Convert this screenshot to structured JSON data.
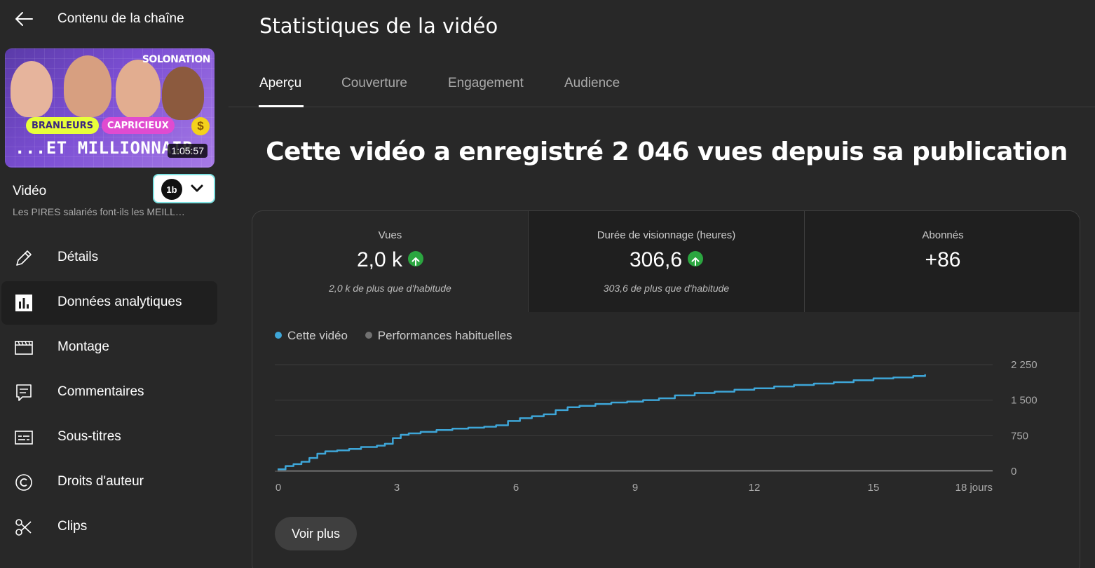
{
  "sidebar": {
    "back_title": "Contenu de la chaîne",
    "thumbnail": {
      "brand": "SOLONATION",
      "pill_a": "BRANLEURS",
      "pill_b": "CAPRICIEUX",
      "headline": "...ET MILLIONNAIR",
      "duration": "1:05:57"
    },
    "video_label": "Vidéo",
    "video_title": "Les PIRES salariés font-ils les MEILL…",
    "ext_logo": "1b",
    "nav": [
      {
        "label": "Détails",
        "icon": "pencil-icon"
      },
      {
        "label": "Données analytiques",
        "icon": "analytics-icon"
      },
      {
        "label": "Montage",
        "icon": "clapperboard-icon"
      },
      {
        "label": "Commentaires",
        "icon": "comment-icon"
      },
      {
        "label": "Sous-titres",
        "icon": "subtitles-icon"
      },
      {
        "label": "Droits d'auteur",
        "icon": "copyright-icon"
      },
      {
        "label": "Clips",
        "icon": "scissors-icon"
      }
    ]
  },
  "main": {
    "title": "Statistiques de la vidéo",
    "tabs": [
      {
        "label": "Aperçu"
      },
      {
        "label": "Couverture"
      },
      {
        "label": "Engagement"
      },
      {
        "label": "Audience"
      }
    ],
    "headline": "Cette vidéo a enregistré 2 046 vues depuis sa publication",
    "metrics": [
      {
        "label": "Vues",
        "value": "2,0 k",
        "sub": "2,0 k de plus que d'habitude"
      },
      {
        "label": "Durée de visionnage (heures)",
        "value": "306,6",
        "sub": "303,6 de plus que d'habitude"
      },
      {
        "label": "Abonnés",
        "value": "+86",
        "sub": ""
      }
    ],
    "more_button": "Voir plus"
  },
  "colors": {
    "series_main": "#3ea6d8",
    "series_typical": "#717171",
    "up_green": "#2ba640"
  },
  "chart_data": {
    "type": "line",
    "x_tick_labels": [
      "0",
      "3",
      "6",
      "9",
      "12",
      "15",
      "18 jours"
    ],
    "y_tick_labels": [
      "2 250",
      "1 500",
      "750",
      "0"
    ],
    "ylim": [
      0,
      2250
    ],
    "xlim": [
      0,
      18
    ],
    "grid": true,
    "legend_position": "top-left",
    "series": [
      {
        "name": "Cette vidéo",
        "x": [
          0,
          0.2,
          0.4,
          0.6,
          0.8,
          1.0,
          1.2,
          1.5,
          1.8,
          2.1,
          2.5,
          2.7,
          2.9,
          3.1,
          3.3,
          3.6,
          4.0,
          4.4,
          4.8,
          5.2,
          5.5,
          5.8,
          6.1,
          6.4,
          6.7,
          7.0,
          7.3,
          7.6,
          8.0,
          8.4,
          8.8,
          9.2,
          9.6,
          10.0,
          10.5,
          11.0,
          11.5,
          12.0,
          12.5,
          13.0,
          13.5,
          14.0,
          14.5,
          15.0,
          15.5,
          16.0,
          16.3
        ],
        "values": [
          40,
          110,
          150,
          200,
          280,
          370,
          420,
          440,
          470,
          510,
          540,
          580,
          700,
          770,
          800,
          830,
          870,
          900,
          920,
          940,
          970,
          1060,
          1120,
          1160,
          1200,
          1290,
          1350,
          1380,
          1420,
          1450,
          1470,
          1500,
          1540,
          1600,
          1650,
          1680,
          1720,
          1750,
          1790,
          1820,
          1850,
          1880,
          1920,
          1960,
          1980,
          2010,
          2046
        ]
      },
      {
        "name": "Performances habituelles",
        "x": [
          0,
          18
        ],
        "values": [
          5,
          15
        ]
      }
    ]
  }
}
